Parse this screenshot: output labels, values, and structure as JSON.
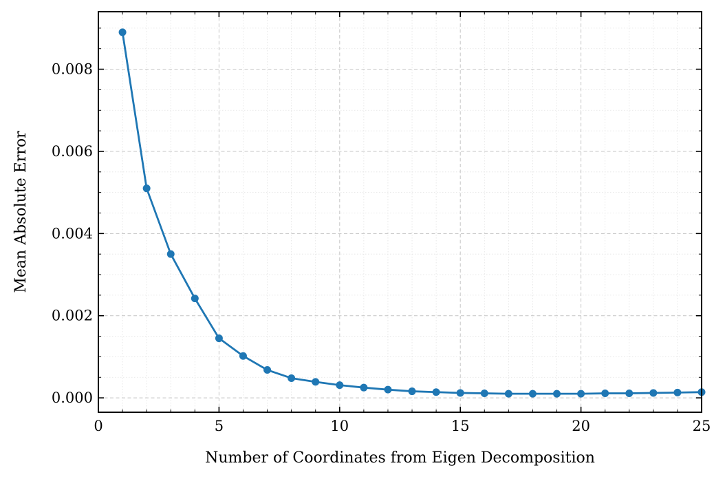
{
  "chart_data": {
    "type": "line",
    "title": "",
    "xlabel": "Number of Coordinates from Eigen Decomposition",
    "ylabel": "Mean Absolute Error",
    "xlim": [
      0,
      25
    ],
    "ylim": [
      -0.00035,
      0.0094
    ],
    "xticks": [
      0,
      5,
      10,
      15,
      20,
      25
    ],
    "xtick_labels": [
      "0",
      "5",
      "10",
      "15",
      "20",
      "25"
    ],
    "yticks": [
      0.0,
      0.002,
      0.004,
      0.006,
      0.008
    ],
    "ytick_labels": [
      "0.000",
      "0.002",
      "0.004",
      "0.006",
      "0.008"
    ],
    "grid": true,
    "minor_grid": true,
    "legend": "none",
    "series": [
      {
        "color": "#1f77b4",
        "marker": "circle",
        "x": [
          1,
          2,
          3,
          4,
          5,
          6,
          7,
          8,
          9,
          10,
          11,
          12,
          13,
          14,
          15,
          16,
          17,
          18,
          19,
          20,
          21,
          22,
          23,
          24,
          25
        ],
        "y": [
          0.0089,
          0.0051,
          0.0035,
          0.00242,
          0.00145,
          0.00102,
          0.00068,
          0.00048,
          0.00039,
          0.00031,
          0.00025,
          0.0002,
          0.00016,
          0.00014,
          0.00012,
          0.00011,
          0.0001,
          0.0001,
          0.0001,
          0.0001,
          0.00011,
          0.00011,
          0.00012,
          0.00013,
          0.00014
        ]
      }
    ]
  }
}
